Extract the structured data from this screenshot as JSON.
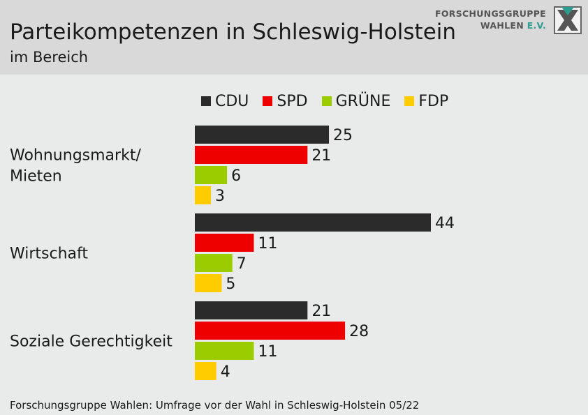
{
  "header": {
    "title": "Parteikompetenzen in Schleswig-Holstein",
    "subtitle": "im Bereich"
  },
  "logo": {
    "line1": "FORSCHUNGSGRUPPE",
    "line2_main": "WAHLEN",
    "line2_suffix": "E.V.",
    "icon": "fgw-x-logo-icon"
  },
  "footer": {
    "source": "Forschungsgruppe Wahlen: Umfrage vor der Wahl in Schleswig-Holstein 05/22"
  },
  "chart_data": {
    "type": "bar",
    "orientation": "horizontal",
    "title": "Parteikompetenzen in Schleswig-Holstein",
    "subtitle": "im Bereich",
    "categories": [
      [
        "Wohnungsmarkt/",
        "Mieten"
      ],
      [
        "Wirtschaft"
      ],
      [
        "Soziale Gerechtigkeit"
      ]
    ],
    "series": [
      {
        "name": "CDU",
        "color": "#2b2b2b",
        "values": [
          25,
          44,
          21
        ]
      },
      {
        "name": "SPD",
        "color": "#ee0000",
        "values": [
          21,
          11,
          28
        ]
      },
      {
        "name": "GRÜNE",
        "color": "#9bcc00",
        "values": [
          6,
          7,
          11
        ]
      },
      {
        "name": "FDP",
        "color": "#ffcc00",
        "values": [
          3,
          5,
          4
        ]
      }
    ],
    "xlim": [
      0,
      44
    ],
    "grid": false,
    "legend": "top",
    "data_labels": true
  }
}
